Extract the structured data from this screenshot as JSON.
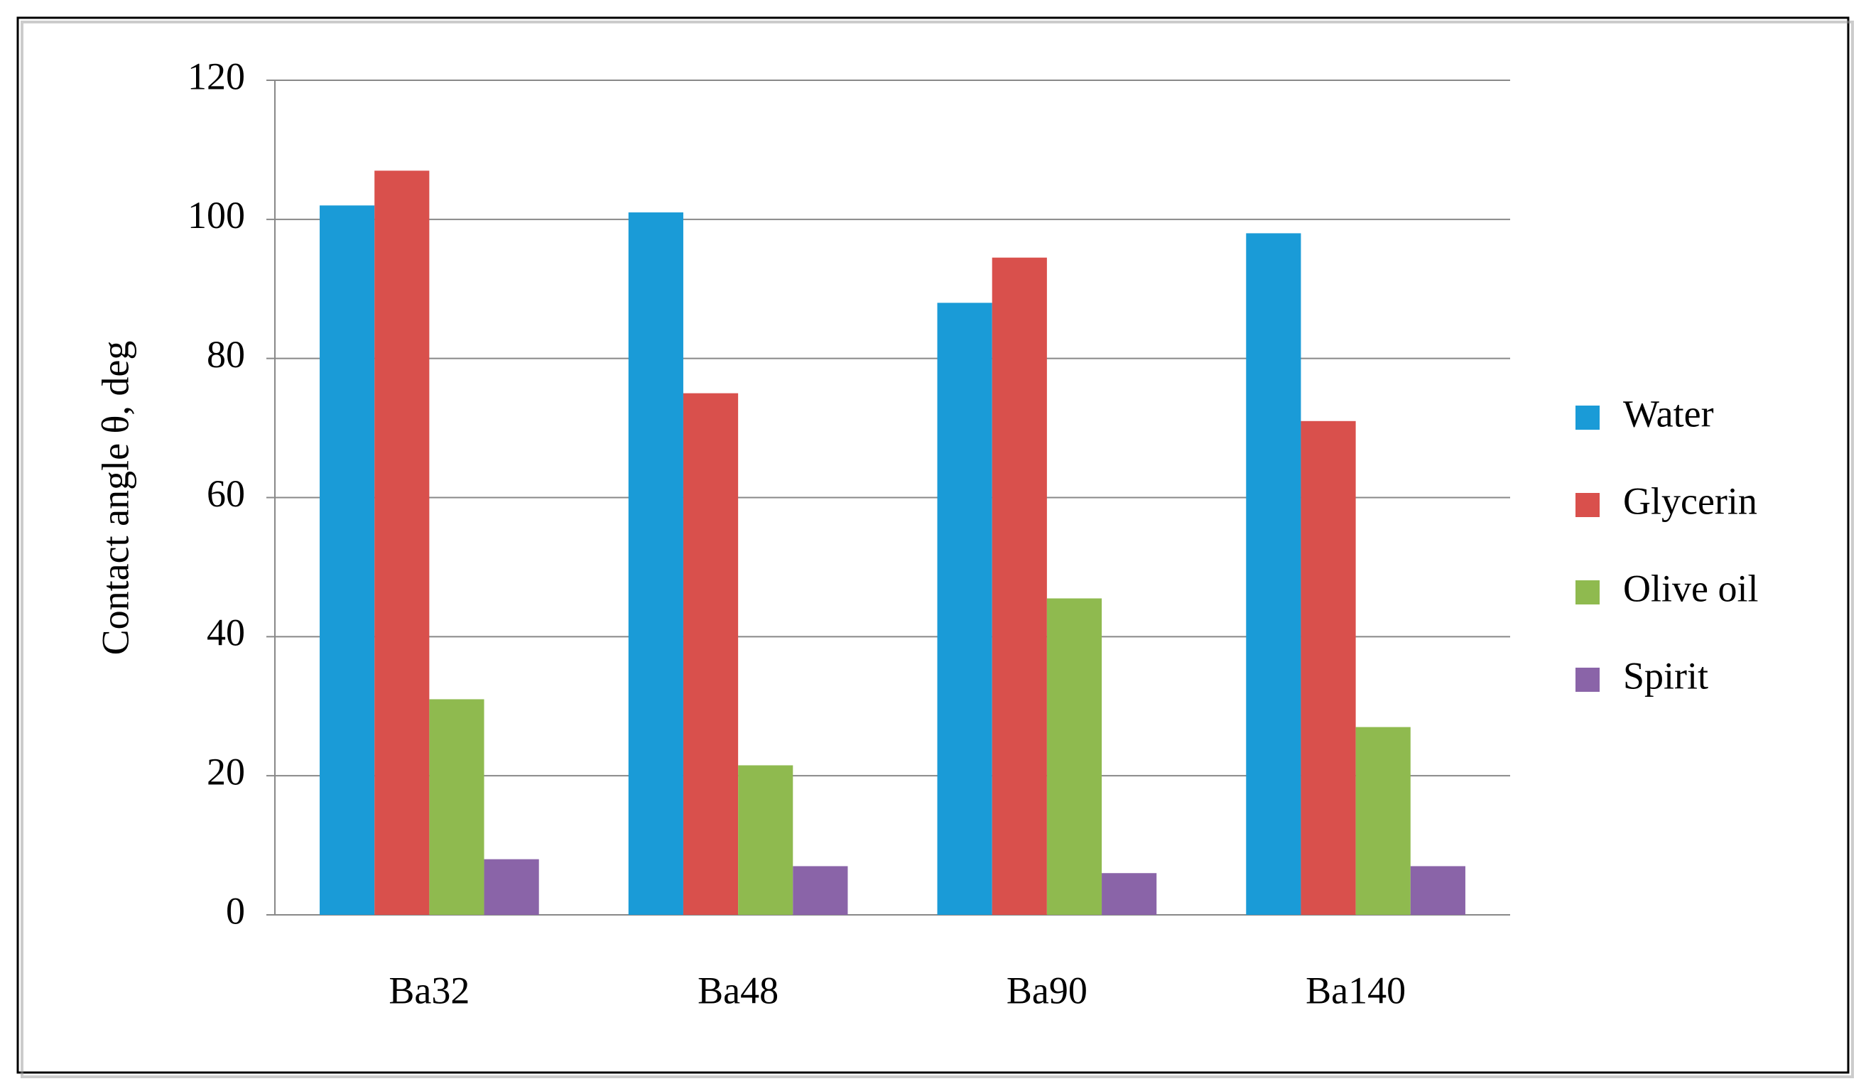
{
  "chart_data": {
    "type": "bar",
    "y_label": "Contact angle θ, deg",
    "categories": [
      "Ba32",
      "Ba48",
      "Ba90",
      "Ba140"
    ],
    "series": [
      {
        "name": "Water",
        "color": "#1a9bd7",
        "values": [
          102,
          101,
          88,
          98
        ]
      },
      {
        "name": "Glycerin",
        "color": "#d9504c",
        "values": [
          107,
          75,
          94.5,
          71
        ]
      },
      {
        "name": "Olive oil",
        "color": "#8fba4f",
        "values": [
          31,
          21.5,
          45.5,
          27
        ]
      },
      {
        "name": "Spirit",
        "color": "#8a64a8",
        "values": [
          8,
          7,
          6,
          7
        ]
      }
    ],
    "ylim": [
      0,
      120
    ],
    "yticks": [
      0,
      20,
      40,
      60,
      80,
      100,
      120
    ],
    "grid": true,
    "legend": "right"
  }
}
